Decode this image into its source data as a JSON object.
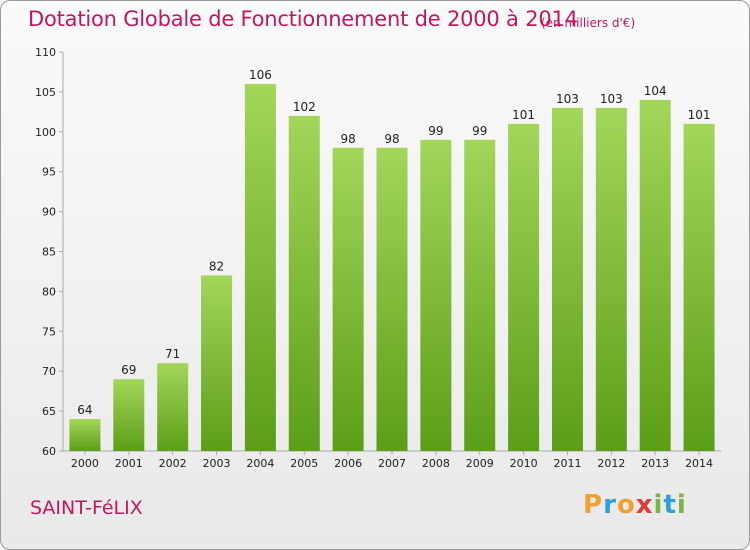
{
  "chart_data": {
    "type": "bar",
    "title": "Dotation Globale de Fonctionnement de 2000 à 2014",
    "unit_note": "(en milliers d'€)",
    "categories": [
      "2000",
      "2001",
      "2002",
      "2003",
      "2004",
      "2005",
      "2006",
      "2007",
      "2008",
      "2009",
      "2010",
      "2011",
      "2012",
      "2013",
      "2014"
    ],
    "values": [
      64,
      69,
      71,
      82,
      106,
      102,
      98,
      98,
      99,
      99,
      101,
      103,
      103,
      104,
      101
    ],
    "ylim": [
      60,
      110
    ],
    "yticks": [
      60,
      65,
      70,
      75,
      80,
      85,
      90,
      95,
      100,
      105,
      110
    ],
    "grid": false,
    "bar_color": "#7fbf3a",
    "xlabel": "",
    "ylabel": ""
  },
  "footer": {
    "commune": "SAINT-FéLIX",
    "logo": [
      "P",
      "r",
      "o",
      "x",
      "i",
      "t",
      "i"
    ],
    "logo_colors": [
      "#f0a030",
      "#2f9fd8",
      "#f0a030",
      "#e53935",
      "#7cb342",
      "#2f9fd8",
      "#7cb342"
    ]
  }
}
